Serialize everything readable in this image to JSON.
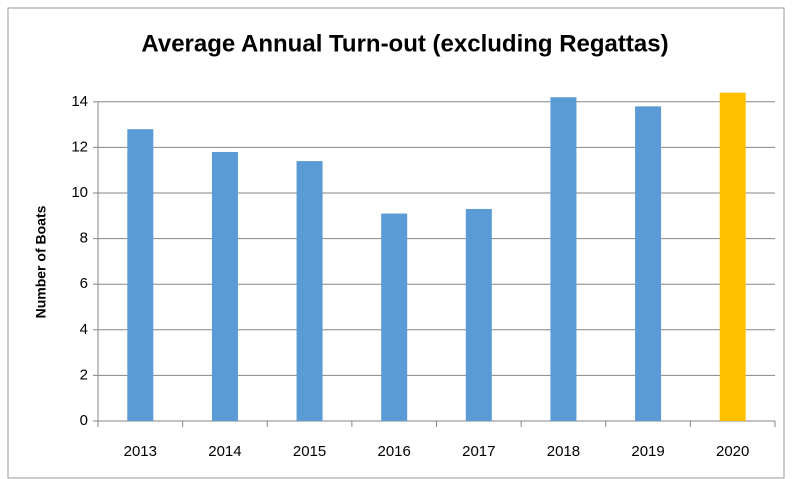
{
  "chart_data": {
    "type": "bar",
    "title": "Average Annual Turn-out (excluding Regattas)",
    "y_label": "Number of Boats",
    "categories": [
      "2013",
      "2014",
      "2015",
      "2016",
      "2017",
      "2018",
      "2019",
      "2020"
    ],
    "values": [
      12.8,
      11.8,
      11.4,
      9.1,
      9.3,
      14.2,
      13.8,
      14.4
    ],
    "colors": [
      "#5b9bd5",
      "#5b9bd5",
      "#5b9bd5",
      "#5b9bd5",
      "#5b9bd5",
      "#5b9bd5",
      "#5b9bd5",
      "#ffc000"
    ],
    "ylim": [
      0,
      15
    ],
    "yticks": [
      0,
      2,
      4,
      6,
      8,
      10,
      12,
      14
    ],
    "grid": true
  }
}
